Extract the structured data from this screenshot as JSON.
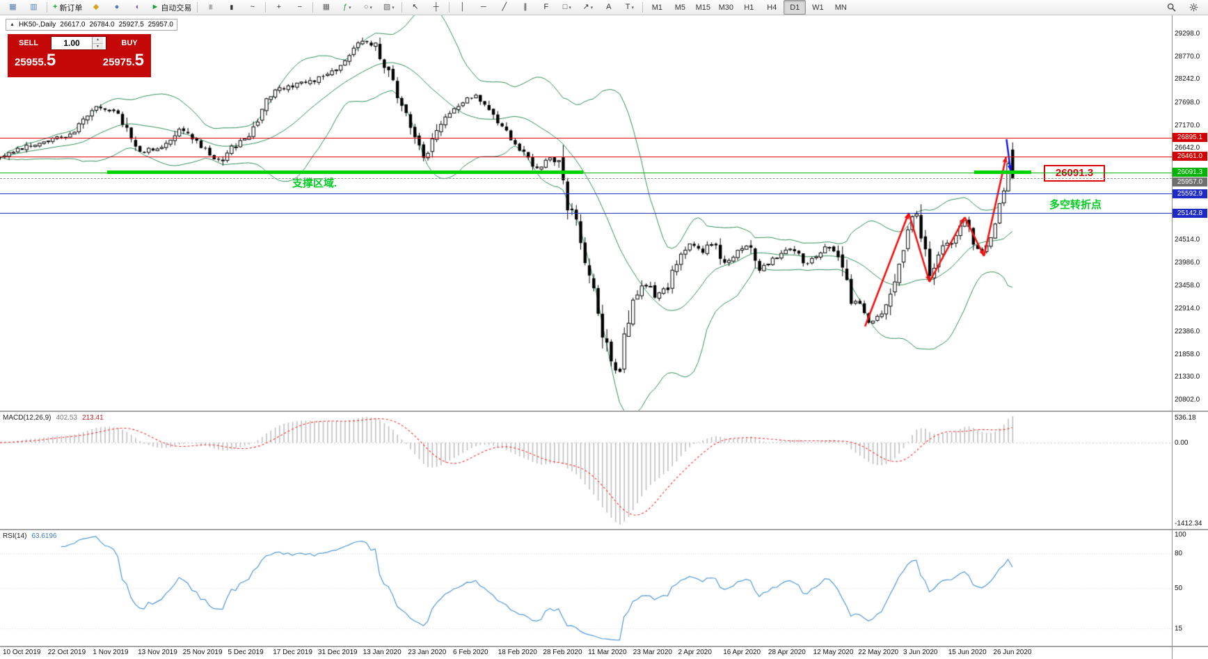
{
  "toolbar": {
    "caret_glyph": "▾",
    "items": [
      {
        "kind": "icon",
        "glyph": "▦",
        "color": "#4f7dad",
        "name": "new-chart-icon"
      },
      {
        "kind": "icon",
        "glyph": "▥",
        "color": "#4f7dad",
        "name": "profiles-icon"
      },
      {
        "kind": "sep"
      },
      {
        "kind": "labeled",
        "glyph": "+",
        "glyph_color": "#1f9d3a",
        "label": "新订单",
        "name": "new-order-button"
      },
      {
        "kind": "icon",
        "glyph": "◆",
        "color": "#d9a520",
        "name": "favorites-icon"
      },
      {
        "kind": "icon",
        "glyph": "●",
        "color": "#4f7dad",
        "name": "market-watch-icon"
      },
      {
        "kind": "icon",
        "glyph": "◐",
        "color": "#7d5fa8",
        "name": "navigator-icon"
      },
      {
        "kind": "labeled",
        "glyph": "►",
        "glyph_color": "#1f9d3a",
        "label": "自动交易",
        "name": "autotrade-button"
      },
      {
        "kind": "sep"
      },
      {
        "kind": "icon",
        "glyph": "|||",
        "color": "#333333",
        "name": "bars-chart-icon",
        "size": 7
      },
      {
        "kind": "icon",
        "glyph": "▮",
        "color": "#333333",
        "name": "candles-chart-icon",
        "size": 9
      },
      {
        "kind": "icon",
        "glyph": "~",
        "color": "#333333",
        "name": "line-chart-icon"
      },
      {
        "kind": "sep"
      },
      {
        "kind": "icon",
        "glyph": "+",
        "color": "#333333",
        "name": "zoom-in-icon"
      },
      {
        "kind": "icon",
        "glyph": "−",
        "color": "#333333",
        "name": "zoom-out-icon"
      },
      {
        "kind": "sep"
      },
      {
        "kind": "icon",
        "glyph": "▦",
        "color": "#666666",
        "name": "tile-windows-icon"
      },
      {
        "kind": "icon",
        "glyph": "ƒ",
        "color": "#1f9d3a",
        "name": "indicators-icon",
        "caret": true
      },
      {
        "kind": "icon",
        "glyph": "○",
        "color": "#666666",
        "name": "periods-icon",
        "caret": true
      },
      {
        "kind": "icon",
        "glyph": "▧",
        "color": "#666666",
        "name": "templates-icon",
        "caret": true
      },
      {
        "kind": "sep"
      },
      {
        "kind": "icon",
        "glyph": "↖",
        "color": "#333333",
        "name": "cursor-icon"
      },
      {
        "kind": "icon",
        "glyph": "┼",
        "color": "#333333",
        "name": "crosshair-icon"
      },
      {
        "kind": "sep"
      },
      {
        "kind": "icon",
        "glyph": "│",
        "color": "#333333",
        "name": "vertical-line-icon"
      },
      {
        "kind": "icon",
        "glyph": "─",
        "color": "#333333",
        "name": "horizontal-line-icon"
      },
      {
        "kind": "icon",
        "glyph": "╱",
        "color": "#333333",
        "name": "trendline-icon"
      },
      {
        "kind": "icon",
        "glyph": "∥",
        "color": "#333333",
        "name": "channel-icon"
      },
      {
        "kind": "icon",
        "glyph": "F",
        "color": "#333333",
        "name": "fibonacci-icon"
      },
      {
        "kind": "icon",
        "glyph": "□",
        "color": "#333333",
        "name": "shapes-icon",
        "caret": true
      },
      {
        "kind": "icon",
        "glyph": "↗",
        "color": "#333333",
        "name": "arrows-icon",
        "caret": true
      },
      {
        "kind": "icon",
        "glyph": "A",
        "color": "#333333",
        "name": "text-icon"
      },
      {
        "kind": "icon",
        "glyph": "T",
        "color": "#333333",
        "name": "text-label-icon",
        "caret": true
      },
      {
        "kind": "sep"
      }
    ],
    "timeframes": [
      "M1",
      "M5",
      "M15",
      "M30",
      "H1",
      "H4",
      "D1",
      "W1",
      "MN"
    ],
    "active_timeframe": "D1",
    "right_items": [
      {
        "kind": "svg",
        "icon": "search",
        "name": "search-icon"
      },
      {
        "kind": "svg",
        "icon": "settings",
        "name": "settings-icon"
      }
    ]
  },
  "chart": {
    "collapse_glyph": "▲",
    "symbol_period": "HK50-,Daily",
    "open": "26617.0",
    "high": "26784.0",
    "low": "25927.5",
    "close": "25957.0"
  },
  "order_panel": {
    "panel_color": "#c40808",
    "sell_label": "SELL",
    "buy_label": "BUY",
    "volume": "1.00",
    "stepper_up": "▲",
    "stepper_down": "▼",
    "sell_price_main": "25955.",
    "sell_price_big": "5",
    "buy_price_main": "25975.",
    "buy_price_big": "5"
  },
  "price_axis": {
    "labels": [
      "29298.0",
      "28770.0",
      "28242.0",
      "27698.0",
      "27170.0",
      "26642.0",
      "24514.0",
      "23986.0",
      "23458.0",
      "22914.0",
      "22386.0",
      "21858.0",
      "21330.0",
      "20802.0"
    ],
    "tags": [
      {
        "text": "26895.1",
        "color": "#d40000"
      },
      {
        "text": "26461.0",
        "color": "#d40000"
      },
      {
        "text": "26091.3",
        "color": "#00b400"
      },
      {
        "text": "25957.0",
        "color": "#6f6f6f"
      },
      {
        "text": "25592.9",
        "color": "#1e2ac8"
      },
      {
        "text": "25142.8",
        "color": "#1e2ac8"
      }
    ]
  },
  "hlines": [
    {
      "value": 26895.1,
      "color": "#e00000",
      "style": "solid"
    },
    {
      "value": 26461.0,
      "color": "#e00000",
      "style": "solid"
    },
    {
      "value": 26091.3,
      "color": "#00b400",
      "style": "solid"
    },
    {
      "value": 25957.0,
      "color": "#909090",
      "style": "dashed"
    },
    {
      "value": 25592.9,
      "color": "#2a35cf",
      "style": "solid"
    },
    {
      "value": 25142.8,
      "color": "#2a35cf",
      "style": "solid"
    }
  ],
  "annotations": {
    "support_text": "支撑区域.",
    "pivot_text": "多空转折点",
    "price_box_text": "26091.3",
    "text_color": "#00cc22",
    "box_color": "#e00000",
    "support_band": {
      "price": 26091.3,
      "color": "#00d300",
      "segments": [
        [
          0.0916,
          0.4974
        ],
        [
          0.8312,
          0.8802
        ]
      ]
    },
    "zigzag": {
      "color": "#ee1111",
      "points": [
        [
          0.7382,
          469
        ],
        [
          0.7755,
          306
        ],
        [
          0.7932,
          405
        ],
        [
          0.8233,
          312
        ],
        [
          0.8397,
          368
        ],
        [
          0.8586,
          225
        ]
      ]
    },
    "blue_arrow": {
      "color": "#1414e6",
      "from": [
        0.8589,
        200
      ],
      "to": [
        0.8625,
        246
      ]
    }
  },
  "indicators": {
    "macd": {
      "label": "MACD(12,26,9)",
      "value_main": "402.53",
      "value_signal": "213.41",
      "axis": [
        "536.18",
        "0.00",
        "-1412.34"
      ],
      "hist_color": "#bfbfbf",
      "signal_color": "#ff2a2a"
    },
    "rsi": {
      "label": "RSI(14)",
      "value": "63.6196",
      "axis": [
        100,
        80,
        50,
        15
      ],
      "line_color": "#4f97d7"
    }
  },
  "date_axis": [
    "10 Oct 2019",
    "22 Oct 2019",
    "1 Nov 2019",
    "13 Nov 2019",
    "25 Nov 2019",
    "5 Dec 2019",
    "17 Dec 2019",
    "31 Dec 2019",
    "13 Jan 2020",
    "23 Jan 2020",
    "6 Feb 2020",
    "18 Feb 2020",
    "28 Feb 2020",
    "11 Mar 2020",
    "23 Mar 2020",
    "2 Apr 2020",
    "16 Apr 2020",
    "28 Apr 2020",
    "12 May 2020",
    "22 May 2020",
    "3 Jun 2020",
    "15 Jun 2020",
    "26 Jun 2020"
  ],
  "chart_data": {
    "type": "candlestick",
    "symbol": "HK50-",
    "period": "Daily",
    "candle_count": 233,
    "last_candle": {
      "open": 26617.0,
      "high": 26784.0,
      "low": 25927.5,
      "close": 25957.0
    },
    "bollinger": {
      "period": 20,
      "deviation": 2,
      "color": "#2e8b57"
    },
    "visible_price_range": [
      20559,
      29734
    ],
    "price_path": [
      [
        0,
        26450
      ],
      [
        0.036,
        26800
      ],
      [
        0.0622,
        26990
      ],
      [
        0.0818,
        27600
      ],
      [
        0.1014,
        27430
      ],
      [
        0.1113,
        26810
      ],
      [
        0.1211,
        26540
      ],
      [
        0.1407,
        26720
      ],
      [
        0.1538,
        27160
      ],
      [
        0.1669,
        26810
      ],
      [
        0.1767,
        26540
      ],
      [
        0.1865,
        26360
      ],
      [
        0.1963,
        26630
      ],
      [
        0.2127,
        26990
      ],
      [
        0.2291,
        27870
      ],
      [
        0.2421,
        28050
      ],
      [
        0.2552,
        28140
      ],
      [
        0.2683,
        28230
      ],
      [
        0.2814,
        28400
      ],
      [
        0.2945,
        28670
      ],
      [
        0.3076,
        29100
      ],
      [
        0.3207,
        29020
      ],
      [
        0.3305,
        28400
      ],
      [
        0.3403,
        27780
      ],
      [
        0.3534,
        26990
      ],
      [
        0.3632,
        26360
      ],
      [
        0.3763,
        27250
      ],
      [
        0.3927,
        27700
      ],
      [
        0.4058,
        27870
      ],
      [
        0.4188,
        27430
      ],
      [
        0.4319,
        27070
      ],
      [
        0.445,
        26540
      ],
      [
        0.4581,
        26190
      ],
      [
        0.4679,
        26450
      ],
      [
        0.4777,
        26280
      ],
      [
        0.4843,
        25300
      ],
      [
        0.4908,
        24940
      ],
      [
        0.5006,
        23880
      ],
      [
        0.5072,
        23170
      ],
      [
        0.517,
        22020
      ],
      [
        0.5235,
        21570
      ],
      [
        0.5275,
        21330
      ],
      [
        0.5334,
        22280
      ],
      [
        0.5399,
        23000
      ],
      [
        0.5465,
        23350
      ],
      [
        0.553,
        23530
      ],
      [
        0.5596,
        23170
      ],
      [
        0.5694,
        23440
      ],
      [
        0.5792,
        24060
      ],
      [
        0.589,
        24410
      ],
      [
        0.5988,
        24230
      ],
      [
        0.6086,
        24500
      ],
      [
        0.6185,
        23970
      ],
      [
        0.6283,
        24230
      ],
      [
        0.6381,
        24410
      ],
      [
        0.6479,
        23790
      ],
      [
        0.6577,
        24060
      ],
      [
        0.6675,
        24230
      ],
      [
        0.6773,
        24320
      ],
      [
        0.6871,
        23970
      ],
      [
        0.6969,
        24150
      ],
      [
        0.7068,
        24410
      ],
      [
        0.7166,
        24060
      ],
      [
        0.7264,
        22990
      ],
      [
        0.733,
        23170
      ],
      [
        0.7395,
        22550
      ],
      [
        0.7493,
        22730
      ],
      [
        0.7592,
        23170
      ],
      [
        0.769,
        24230
      ],
      [
        0.7755,
        24940
      ],
      [
        0.7821,
        25120
      ],
      [
        0.7886,
        24410
      ],
      [
        0.7932,
        23700
      ],
      [
        0.8017,
        24230
      ],
      [
        0.8083,
        24410
      ],
      [
        0.8148,
        24590
      ],
      [
        0.8233,
        24940
      ],
      [
        0.8312,
        24410
      ],
      [
        0.839,
        24230
      ],
      [
        0.8456,
        24590
      ],
      [
        0.8508,
        25120
      ],
      [
        0.856,
        25650
      ],
      [
        0.8606,
        26350
      ],
      [
        0.8639,
        25957
      ]
    ]
  }
}
